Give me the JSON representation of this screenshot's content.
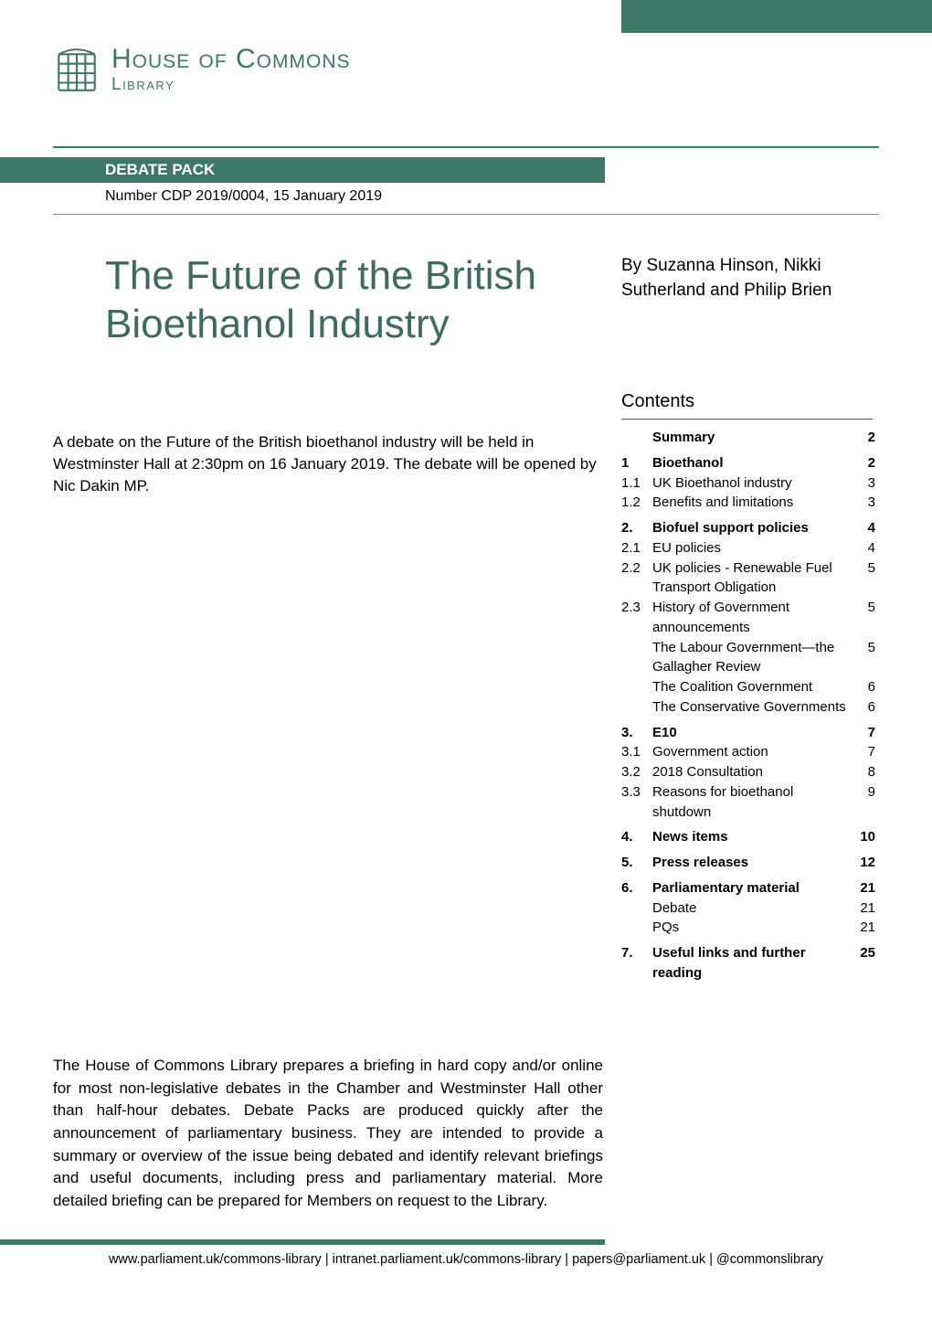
{
  "colors": {
    "primary": "#3d7765",
    "text": "#000000",
    "background": "#ffffff",
    "divider_light": "#888888"
  },
  "logo": {
    "main": "House of Commons",
    "sub": "Library"
  },
  "header": {
    "pack_label": "DEBATE PACK",
    "doc_number": "Number CDP 2019/0004,  15 January 2019"
  },
  "title": "The Future of the British Bioethanol Industry",
  "authors": "By Suzanna Hinson, Nikki Sutherland and Philip Brien",
  "intro": "A debate on the Future of the British bioethanol industry will be held in Westminster Hall at 2:30pm on 16 January 2019. The debate will be opened by Nic Dakin MP.",
  "contents_heading": "Contents",
  "toc": [
    {
      "num": "",
      "label": "Summary",
      "page": "2",
      "bold": true,
      "section_start": false
    },
    {
      "num": "1",
      "label": "Bioethanol",
      "page": "2",
      "bold": true,
      "section_start": true
    },
    {
      "num": "1.1",
      "label": "UK Bioethanol industry",
      "page": "3",
      "bold": false,
      "section_start": false
    },
    {
      "num": "1.2",
      "label": "Benefits and limitations",
      "page": "3",
      "bold": false,
      "section_start": false
    },
    {
      "num": "2.",
      "label": "Biofuel support policies",
      "page": "4",
      "bold": true,
      "section_start": true
    },
    {
      "num": "2.1",
      "label": "EU policies",
      "page": "4",
      "bold": false,
      "section_start": false
    },
    {
      "num": "2.2",
      "label": "UK policies - Renewable Fuel Transport Obligation",
      "page": "5",
      "bold": false,
      "section_start": false
    },
    {
      "num": "2.3",
      "label": "History of Government announcements",
      "page": "5",
      "bold": false,
      "section_start": false
    },
    {
      "num": "",
      "label": "The Labour Government—the Gallagher Review",
      "page": "5",
      "bold": false,
      "section_start": false
    },
    {
      "num": "",
      "label": "The Coalition Government",
      "page": "6",
      "bold": false,
      "section_start": false
    },
    {
      "num": "",
      "label": "The Conservative Governments",
      "page": "6",
      "bold": false,
      "section_start": false
    },
    {
      "num": "3.",
      "label": "E10",
      "page": "7",
      "bold": true,
      "section_start": true
    },
    {
      "num": "3.1",
      "label": "Government action",
      "page": "7",
      "bold": false,
      "section_start": false
    },
    {
      "num": "3.2",
      "label": "2018 Consultation",
      "page": "8",
      "bold": false,
      "section_start": false
    },
    {
      "num": "3.3",
      "label": "Reasons for bioethanol shutdown",
      "page": "9",
      "bold": false,
      "section_start": false
    },
    {
      "num": "4.",
      "label": "News items",
      "page": "10",
      "bold": true,
      "section_start": true
    },
    {
      "num": "5.",
      "label": "Press releases",
      "page": "12",
      "bold": true,
      "section_start": true
    },
    {
      "num": "6.",
      "label": "Parliamentary material",
      "page": "21",
      "bold": true,
      "section_start": true
    },
    {
      "num": "",
      "label": "Debate",
      "page": "21",
      "bold": false,
      "section_start": false
    },
    {
      "num": "",
      "label": "PQs",
      "page": "21",
      "bold": false,
      "section_start": false
    },
    {
      "num": "7.",
      "label": "Useful links and further reading",
      "page": "25",
      "bold": true,
      "section_start": true
    }
  ],
  "about": "The House of Commons Library prepares a briefing in hard copy and/or online for most non-legislative debates in the Chamber and Westminster Hall other than half-hour debates. Debate Packs are produced quickly after the announcement of parliamentary business. They are intended to provide a summary or overview of the issue being debated and identify relevant briefings and useful documents, including press and parliamentary material. More detailed briefing can be prepared for Members on request to the Library.",
  "footer_links": "www.parliament.uk/commons-library | intranet.parliament.uk/commons-library | papers@parliament.uk | @commonslibrary"
}
